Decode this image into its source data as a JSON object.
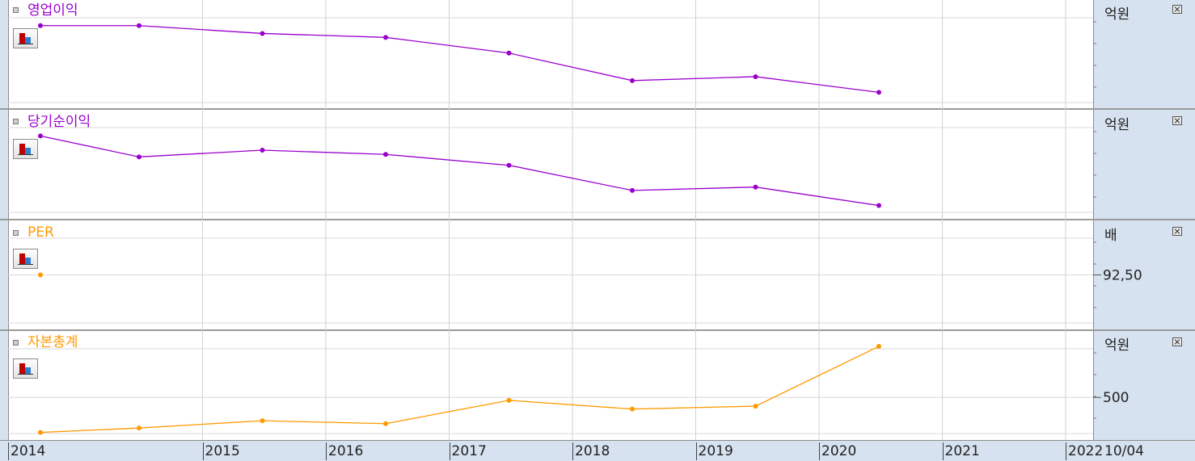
{
  "x_axis": {
    "year_labels": [
      "2014",
      "2015",
      "2016",
      "2017",
      "2018",
      "2019",
      "2020",
      "2021",
      "2022"
    ],
    "date_stamp": "10/04"
  },
  "panels": [
    {
      "title": "영업이익",
      "unit": "억원",
      "y_labels": []
    },
    {
      "title": "당기순이익",
      "unit": "억원",
      "y_labels": []
    },
    {
      "title": "PER",
      "unit": "배",
      "y_labels": [
        "92.50"
      ]
    },
    {
      "title": "자본총계",
      "unit": "억원",
      "y_labels": [
        "500"
      ]
    }
  ],
  "chart_data": [
    {
      "type": "line",
      "title": "영업이익",
      "ylabel": "억원",
      "color": "#9900cc",
      "x": [
        2014.0,
        2014.8,
        2015.8,
        2016.8,
        2017.8,
        2018.8,
        2019.8,
        2020.8
      ],
      "values": [
        100,
        100,
        90,
        85,
        65,
        30,
        35,
        15
      ],
      "ylim": [
        0,
        110
      ]
    },
    {
      "type": "line",
      "title": "당기순이익",
      "ylabel": "억원",
      "color": "#9900cc",
      "x": [
        2014.0,
        2014.8,
        2015.8,
        2016.8,
        2017.8,
        2018.8,
        2019.8,
        2020.8
      ],
      "values": [
        95,
        70,
        78,
        73,
        60,
        30,
        34,
        12
      ],
      "ylim": [
        0,
        105
      ]
    },
    {
      "type": "line",
      "title": "PER",
      "ylabel": "배",
      "color": "#ff9900",
      "x": [
        2014.0
      ],
      "values": [
        92.5
      ],
      "ylim": [
        85,
        100
      ]
    },
    {
      "type": "line",
      "title": "자본총계",
      "ylabel": "억원",
      "color": "#ff9900",
      "x": [
        2014.0,
        2014.8,
        2015.8,
        2016.8,
        2017.8,
        2018.8,
        2019.8,
        2020.8
      ],
      "values": [
        380,
        395,
        420,
        410,
        490,
        460,
        470,
        675
      ],
      "ylim": [
        365,
        700
      ]
    }
  ]
}
